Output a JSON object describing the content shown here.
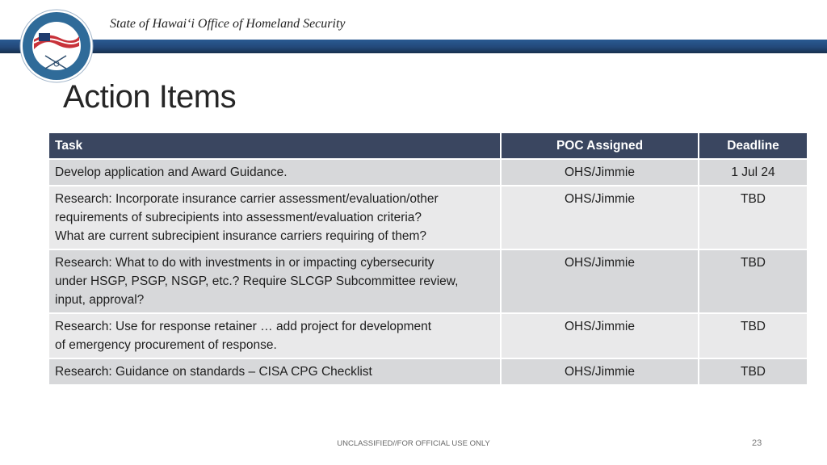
{
  "header": {
    "organization": "State of Hawaiʻi Office of Homeland Security",
    "seal_text": [
      "Office of Homeland Security",
      "State of Hawaii"
    ],
    "accent_color": "#23497a"
  },
  "slide": {
    "title": "Action Items",
    "page_number": "23",
    "classification": "UNCLASSIFIED//FOR OFFICIAL USE ONLY"
  },
  "table": {
    "columns": [
      "Task",
      "POC Assigned",
      "Deadline"
    ],
    "rows": [
      {
        "task": [
          "Develop application and Award Guidance."
        ],
        "poc": "OHS/Jimmie",
        "deadline": "1 Jul 24"
      },
      {
        "task": [
          "Research: Incorporate insurance carrier assessment/evaluation/other",
          "requirements of subrecipients into assessment/evaluation criteria?",
          "What are current subrecipient insurance carriers requiring of them?"
        ],
        "poc": "OHS/Jimmie",
        "deadline": "TBD"
      },
      {
        "task": [
          "Research: What to do with investments in or impacting cybersecurity",
          "under HSGP, PSGP, NSGP, etc.? Require SLCGP Subcommittee review,",
          "input, approval?"
        ],
        "poc": "OHS/Jimmie",
        "deadline": "TBD"
      },
      {
        "task": [
          "Research: Use for response retainer … add project for development",
          "of emergency procurement of response."
        ],
        "poc": "OHS/Jimmie",
        "deadline": "TBD"
      },
      {
        "task": [
          "Research: Guidance on standards – CISA CPG Checklist"
        ],
        "poc": "OHS/Jimmie",
        "deadline": "TBD"
      }
    ]
  }
}
